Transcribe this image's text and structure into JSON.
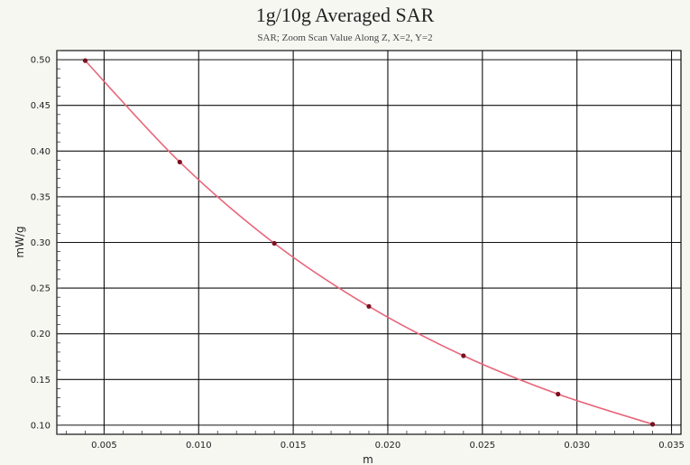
{
  "chart_data": {
    "type": "line",
    "title": "1g/10g Averaged SAR",
    "subtitle": "SAR; Zoom Scan Value Along Z, X=2, Y=2",
    "xlabel": "m",
    "ylabel": "mW/g",
    "xlim": [
      0.0025,
      0.0355
    ],
    "ylim": [
      0.09,
      0.51
    ],
    "x_ticks": [
      0.005,
      0.01,
      0.015,
      0.02,
      0.025,
      0.03,
      0.035
    ],
    "x_tick_labels": [
      "0.005",
      "0.010",
      "0.015",
      "0.020",
      "0.025",
      "0.030",
      "0.035"
    ],
    "y_ticks": [
      0.1,
      0.15,
      0.2,
      0.25,
      0.3,
      0.35,
      0.4,
      0.45,
      0.5
    ],
    "y_tick_labels": [
      "0.10",
      "0.15",
      "0.20",
      "0.25",
      "0.30",
      "0.35",
      "0.40",
      "0.45",
      "0.50"
    ],
    "grid": true,
    "series": [
      {
        "color": "#e8667a",
        "marker_color": "#7a1020",
        "x": [
          0.004,
          0.009,
          0.014,
          0.019,
          0.024,
          0.029,
          0.034
        ],
        "y": [
          0.499,
          0.388,
          0.299,
          0.23,
          0.176,
          0.134,
          0.101
        ]
      }
    ]
  }
}
